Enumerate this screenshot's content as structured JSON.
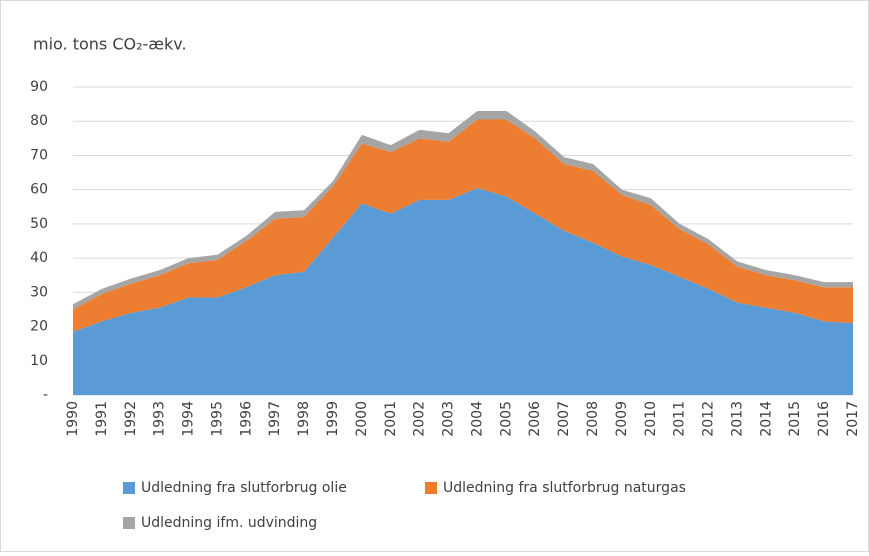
{
  "chart_data": {
    "type": "stacked_area",
    "title": "mio. tons CO₂-ækv.",
    "categories": [
      "1990",
      "1991",
      "1992",
      "1993",
      "1994",
      "1995",
      "1996",
      "1997",
      "1998",
      "1999",
      "2000",
      "2001",
      "2002",
      "2003",
      "2004",
      "2005",
      "2006",
      "2007",
      "2008",
      "2009",
      "2010",
      "2011",
      "2012",
      "2013",
      "2014",
      "2015",
      "2016",
      "2017"
    ],
    "series": [
      {
        "name": "Udledning fra slutforbrug olie",
        "color": "#5b9bd5",
        "values": [
          18.5,
          21.5,
          24,
          25.5,
          28.5,
          28.5,
          31.5,
          35,
          36,
          46,
          56,
          53,
          57,
          57,
          60.5,
          58,
          53,
          48,
          44.5,
          40.5,
          38,
          34.5,
          31,
          27,
          25.5,
          24,
          21.5,
          21
        ]
      },
      {
        "name": "Udledning fra slutforbrug naturgas",
        "color": "#ed7d31",
        "values": [
          6.5,
          8,
          8.5,
          9.5,
          10,
          11,
          13.5,
          16.5,
          16,
          15,
          17.5,
          18,
          18,
          17,
          20,
          22.5,
          22,
          19.5,
          21,
          18,
          17.5,
          14,
          13,
          10.5,
          9.5,
          9.5,
          10,
          10.5
        ]
      },
      {
        "name": "Udledning ifm. udvinding",
        "color": "#a5a5a5",
        "values": [
          1.5,
          1.5,
          1.5,
          1.5,
          1.5,
          1.5,
          1.5,
          2,
          2,
          1.5,
          2.5,
          2,
          2.5,
          2.5,
          2.5,
          2.5,
          2,
          2,
          2,
          1.5,
          2,
          1.5,
          1.5,
          1.5,
          1.5,
          1.5,
          1.5,
          1.5
        ]
      }
    ],
    "ylim": [
      0,
      90
    ],
    "yticks": [
      {
        "value": 0,
        "label": "-"
      },
      10,
      20,
      30,
      40,
      50,
      60,
      70,
      80,
      90
    ],
    "grid": true
  }
}
